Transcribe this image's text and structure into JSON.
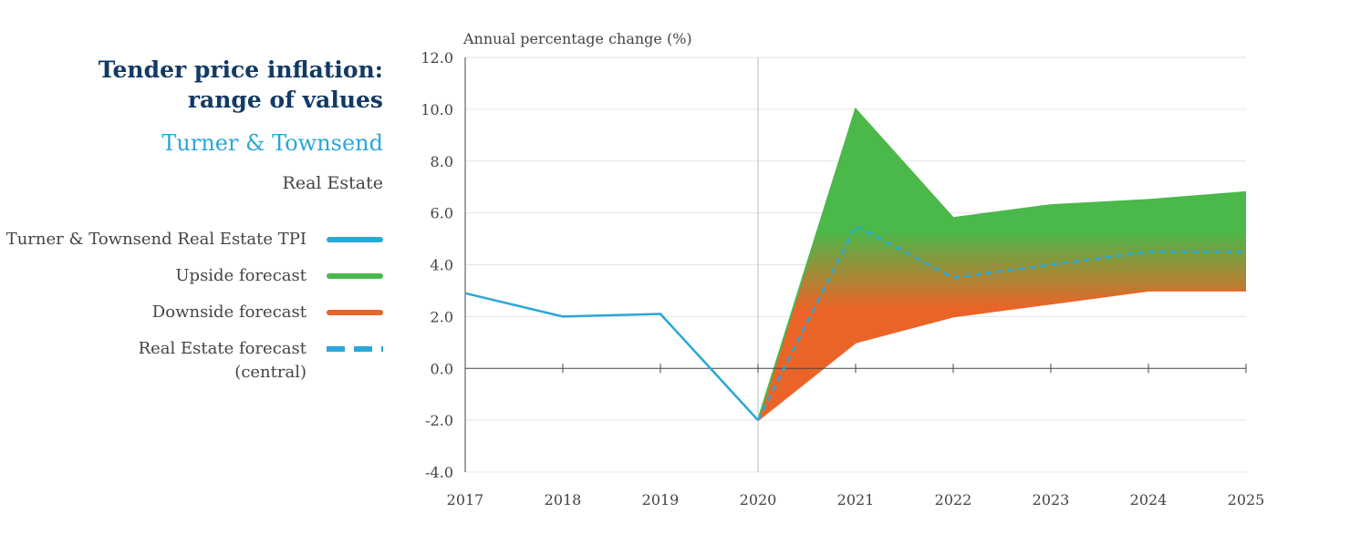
{
  "header": {
    "title_line1": "Tender price inflation:",
    "title_line2": "range of values",
    "brand": "Turner & Townsend",
    "sector": "Real Estate"
  },
  "legend": [
    {
      "label": "Turner & Townsend Real Estate TPI",
      "color": "#2aa7d8",
      "style": "solid"
    },
    {
      "label": "Upside forecast",
      "color": "#4bb84a",
      "style": "solid"
    },
    {
      "label": "Downside forecast",
      "color": "#ea6428",
      "style": "solid"
    },
    {
      "label_line1": "Real Estate forecast",
      "label_line2": "(central)",
      "color": "#2aa7d8",
      "style": "dashed"
    }
  ],
  "chart_data": {
    "type": "line",
    "ylabel": "Annual percentage change (%)",
    "ylim": [
      -4,
      12
    ],
    "yticks": [
      "12.0",
      "10.0",
      "8.0",
      "6.0",
      "4.0",
      "2.0",
      "0.0",
      "-2.0",
      "-4.0"
    ],
    "categories": [
      "2017",
      "2018",
      "2019",
      "2020",
      "2021",
      "2022",
      "2023",
      "2024",
      "2025"
    ],
    "grid": true,
    "series": [
      {
        "name": "Turner & Townsend Real Estate TPI",
        "x": [
          "2017",
          "2018",
          "2019",
          "2020"
        ],
        "values": [
          2.9,
          2.0,
          2.1,
          -2.0
        ],
        "color": "#2aa7d8",
        "style": "solid"
      },
      {
        "name": "Upside forecast",
        "x": [
          "2020",
          "2021",
          "2022",
          "2023",
          "2024",
          "2025"
        ],
        "values": [
          -2.0,
          10.0,
          5.8,
          6.3,
          6.5,
          6.8
        ],
        "color": "#4bb84a",
        "style": "band-top"
      },
      {
        "name": "Downside forecast",
        "x": [
          "2020",
          "2021",
          "2022",
          "2023",
          "2024",
          "2025"
        ],
        "values": [
          -2.0,
          1.0,
          2.0,
          2.5,
          3.0,
          3.0
        ],
        "color": "#ea6428",
        "style": "band-bottom"
      },
      {
        "name": "Real Estate forecast (central)",
        "x": [
          "2020",
          "2021",
          "2022",
          "2023",
          "2024",
          "2025"
        ],
        "values": [
          -2.0,
          5.5,
          3.5,
          4.0,
          4.5,
          4.5
        ],
        "color": "#2aa7d8",
        "style": "dashed"
      }
    ]
  }
}
